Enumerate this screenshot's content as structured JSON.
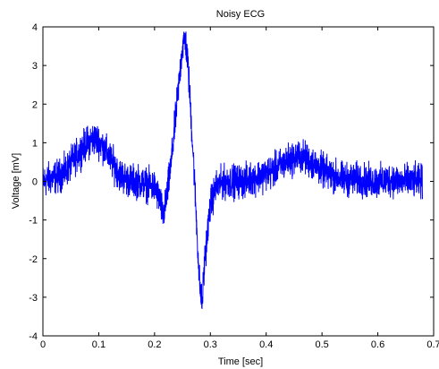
{
  "chart_data": {
    "type": "line",
    "title": "Noisy ECG",
    "xlabel": "Time [sec]",
    "ylabel": "Voltage [mV]",
    "xlim": [
      0,
      0.7
    ],
    "ylim": [
      -4,
      4
    ],
    "xticks": [
      0,
      0.1,
      0.2,
      0.3,
      0.4,
      0.5,
      0.6,
      0.7
    ],
    "xtick_labels": [
      "0",
      "0.1",
      "0.2",
      "0.3",
      "0.4",
      "0.5",
      "0.6",
      "0.7"
    ],
    "yticks": [
      -4,
      -3,
      -2,
      -1,
      0,
      1,
      2,
      3,
      4
    ],
    "ytick_labels": [
      "-4",
      "-3",
      "-2",
      "-1",
      "0",
      "1",
      "2",
      "3",
      "4"
    ],
    "grid": false,
    "line_color": "#0000ff",
    "series": [
      {
        "x": [
          0.0,
          0.01,
          0.02,
          0.03,
          0.04,
          0.05,
          0.06,
          0.07,
          0.08,
          0.09,
          0.1,
          0.11,
          0.12,
          0.13,
          0.14,
          0.15,
          0.16,
          0.17,
          0.18,
          0.19,
          0.2,
          0.21,
          0.215,
          0.22,
          0.23,
          0.24,
          0.25,
          0.255,
          0.26,
          0.27,
          0.28,
          0.285,
          0.29,
          0.3,
          0.31,
          0.32,
          0.33,
          0.34,
          0.35,
          0.36,
          0.37,
          0.38,
          0.39,
          0.4,
          0.41,
          0.42,
          0.43,
          0.44,
          0.45,
          0.46,
          0.47,
          0.48,
          0.49,
          0.5,
          0.51,
          0.52,
          0.53,
          0.54,
          0.55,
          0.56,
          0.57,
          0.58,
          0.59,
          0.6,
          0.61,
          0.62,
          0.63,
          0.64,
          0.65,
          0.66,
          0.67,
          0.68
        ],
        "y": [
          0.0,
          0.05,
          0.1,
          0.15,
          0.25,
          0.45,
          0.65,
          0.85,
          1.0,
          1.1,
          1.05,
          0.85,
          0.6,
          0.35,
          0.15,
          0.05,
          0.0,
          0.0,
          -0.05,
          -0.1,
          -0.15,
          -0.5,
          -0.9,
          -0.6,
          0.5,
          2.0,
          3.5,
          3.7,
          3.0,
          0.5,
          -2.5,
          -3.2,
          -2.0,
          -0.6,
          -0.15,
          -0.05,
          0.0,
          0.0,
          0.0,
          0.0,
          0.05,
          0.1,
          0.15,
          0.2,
          0.25,
          0.35,
          0.45,
          0.55,
          0.6,
          0.65,
          0.6,
          0.5,
          0.4,
          0.3,
          0.2,
          0.15,
          0.1,
          0.05,
          0.05,
          0.05,
          0.05,
          0.0,
          0.0,
          0.0,
          0.0,
          0.05,
          0.05,
          0.0,
          0.0,
          0.0,
          0.0,
          0.0
        ]
      }
    ]
  }
}
